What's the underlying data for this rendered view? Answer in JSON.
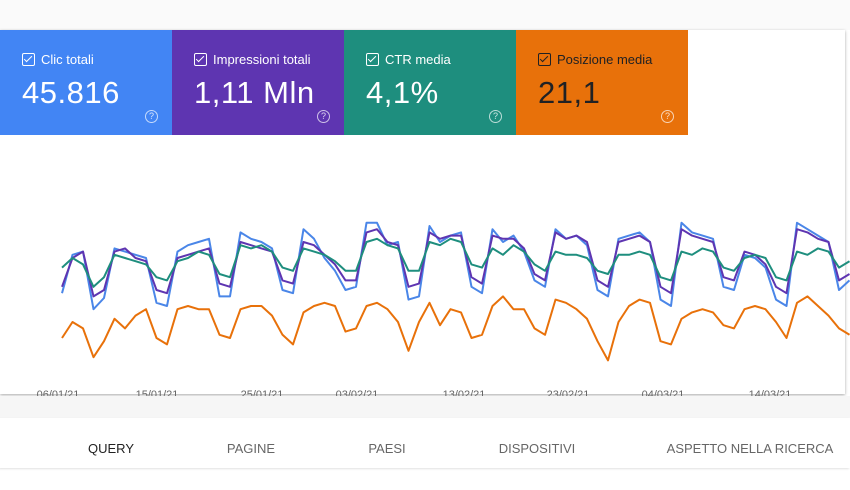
{
  "metrics": [
    {
      "label": "Clic totali",
      "value": "45.816",
      "color": "#4285f4",
      "text_color": "#ffffff",
      "checked": true
    },
    {
      "label": "Impressioni totali",
      "value": "1,11 Mln",
      "color": "#5e35b1",
      "text_color": "#ffffff",
      "checked": true
    },
    {
      "label": "CTR media",
      "value": "4,1%",
      "color": "#1e8e7e",
      "text_color": "#ffffff",
      "checked": true
    },
    {
      "label": "Posizione media",
      "value": "21,1",
      "color": "#e8710a",
      "text_color": "#202124",
      "checked": true
    }
  ],
  "help_icon": "?",
  "chart_data": {
    "type": "line",
    "x_tick_labels": [
      "06/01/21",
      "15/01/21",
      "25/01/21",
      "03/02/21",
      "13/02/21",
      "23/02/21",
      "04/03/21",
      "14/03/21"
    ],
    "grid": false,
    "y_axis_labels_shown": false,
    "series": [
      {
        "metric": "Clic totali",
        "color": "#4a86e8",
        "values": [
          48,
          72,
          74,
          38,
          45,
          76,
          74,
          72,
          70,
          42,
          40,
          74,
          78,
          80,
          82,
          46,
          46,
          86,
          82,
          80,
          76,
          50,
          48,
          88,
          82,
          70,
          62,
          50,
          52,
          92,
          92,
          78,
          80,
          44,
          46,
          90,
          80,
          84,
          86,
          52,
          48,
          88,
          80,
          84,
          74,
          56,
          52,
          88,
          82,
          84,
          78,
          50,
          46,
          82,
          84,
          86,
          80,
          44,
          40,
          92,
          86,
          84,
          82,
          52,
          50,
          72,
          70,
          64,
          44,
          40,
          92,
          88,
          84,
          80,
          50,
          56
        ]
      },
      {
        "metric": "Impressioni totali",
        "color": "#5e35b1",
        "values": [
          52,
          70,
          74,
          46,
          50,
          74,
          76,
          70,
          68,
          50,
          48,
          70,
          72,
          74,
          76,
          54,
          52,
          80,
          78,
          76,
          74,
          56,
          54,
          80,
          78,
          72,
          66,
          56,
          56,
          86,
          88,
          80,
          78,
          52,
          54,
          86,
          82,
          84,
          84,
          58,
          54,
          84,
          82,
          82,
          76,
          60,
          56,
          86,
          82,
          84,
          80,
          56,
          52,
          80,
          82,
          84,
          80,
          52,
          48,
          88,
          84,
          82,
          80,
          58,
          56,
          74,
          72,
          66,
          52,
          48,
          88,
          86,
          82,
          80,
          56,
          60
        ]
      },
      {
        "metric": "CTR media",
        "color": "#1e8e7e",
        "values": [
          64,
          70,
          66,
          52,
          58,
          72,
          70,
          68,
          66,
          58,
          56,
          68,
          70,
          74,
          72,
          60,
          58,
          78,
          76,
          78,
          74,
          64,
          62,
          76,
          74,
          72,
          68,
          62,
          62,
          80,
          82,
          78,
          76,
          62,
          62,
          80,
          78,
          82,
          80,
          66,
          64,
          76,
          72,
          78,
          74,
          66,
          62,
          74,
          72,
          72,
          70,
          62,
          60,
          72,
          72,
          74,
          72,
          58,
          56,
          74,
          72,
          76,
          74,
          64,
          62,
          70,
          72,
          70,
          58,
          56,
          74,
          72,
          76,
          74,
          64,
          68
        ]
      },
      {
        "metric": "Posizione media",
        "color": "#e8710a",
        "values": [
          20,
          30,
          26,
          8,
          18,
          32,
          26,
          34,
          38,
          20,
          16,
          38,
          40,
          38,
          38,
          22,
          20,
          38,
          40,
          40,
          34,
          22,
          16,
          36,
          40,
          42,
          40,
          24,
          26,
          40,
          42,
          38,
          30,
          12,
          30,
          42,
          28,
          38,
          36,
          20,
          22,
          40,
          46,
          38,
          38,
          26,
          22,
          44,
          42,
          38,
          32,
          18,
          6,
          30,
          40,
          44,
          42,
          18,
          16,
          32,
          36,
          38,
          36,
          28,
          26,
          38,
          40,
          38,
          30,
          20,
          42,
          46,
          40,
          34,
          26,
          22
        ]
      }
    ]
  },
  "tabs": [
    {
      "label": "QUERY",
      "active": true
    },
    {
      "label": "PAGINE",
      "active": false
    },
    {
      "label": "PAESI",
      "active": false
    },
    {
      "label": "DISPOSITIVI",
      "active": false
    },
    {
      "label": "ASPETTO NELLA RICERCA",
      "active": false
    }
  ]
}
